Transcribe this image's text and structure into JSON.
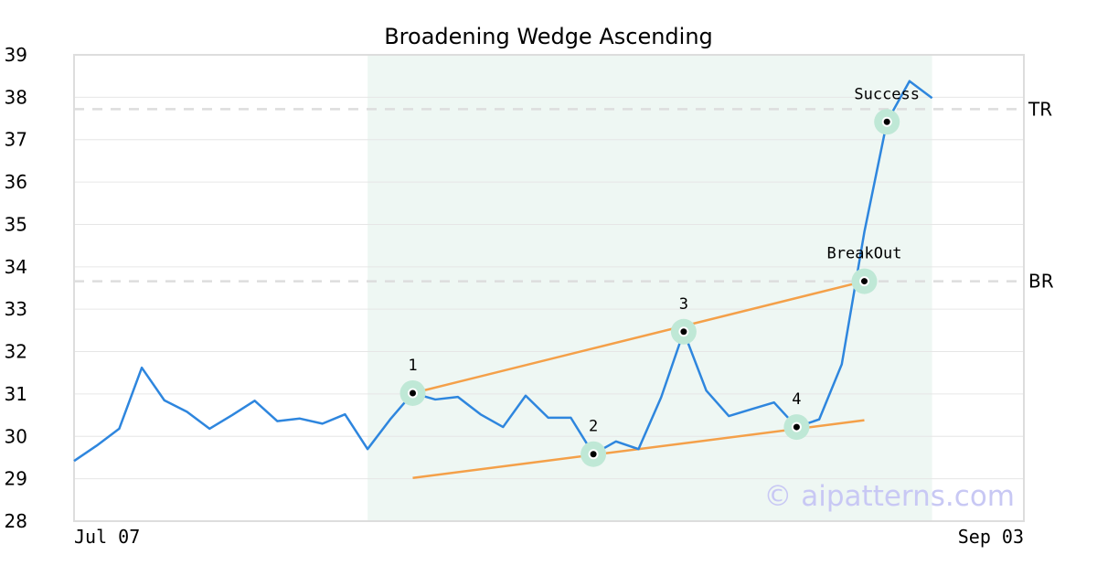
{
  "chart_data": {
    "type": "line",
    "title": "Broadening Wedge Ascending",
    "xlabel": "",
    "ylabel": "",
    "ylim": [
      28,
      39
    ],
    "yticks": [
      "28",
      "29",
      "30",
      "31",
      "32",
      "33",
      "34",
      "35",
      "36",
      "37",
      "38",
      "39"
    ],
    "x_tick_labels": [
      "Jul 07",
      "Sep 03"
    ],
    "grid": "horizontal",
    "series": [
      {
        "color": "#2e86de",
        "values": [
          29.42,
          29.78,
          30.18,
          31.62,
          30.85,
          30.58,
          30.18,
          30.5,
          30.84,
          30.36,
          30.42,
          30.3,
          30.52,
          29.7,
          30.4,
          31.02,
          30.87,
          30.93,
          30.52,
          30.22,
          30.96,
          30.44,
          30.44,
          29.58,
          29.88,
          29.7,
          30.92,
          32.47,
          31.08,
          30.48,
          30.64,
          30.8,
          30.22,
          30.4,
          31.7,
          34.82,
          37.42,
          38.38,
          37.98
        ]
      }
    ],
    "highlight_region": {
      "from_index": 13,
      "to_index": 38,
      "color": "#eef7f3"
    },
    "trend_lines": [
      {
        "color": "#f4a049",
        "from": {
          "index": 15,
          "value": 31.02
        },
        "to": {
          "index": 35,
          "value": 33.66
        }
      },
      {
        "color": "#f4a049",
        "from": {
          "index": 15,
          "value": 29.02
        },
        "to": {
          "index": 35,
          "value": 30.38
        }
      }
    ],
    "markers": [
      {
        "index": 15,
        "value": 31.02,
        "label": "1",
        "label_pos": "above"
      },
      {
        "index": 23,
        "value": 29.58,
        "label": "2",
        "label_pos": "above"
      },
      {
        "index": 27,
        "value": 32.47,
        "label": "3",
        "label_pos": "above"
      },
      {
        "index": 32,
        "value": 30.22,
        "label": "4",
        "label_pos": "above"
      },
      {
        "index": 35,
        "value": 33.66,
        "label": "BreakOut",
        "label_pos": "above"
      },
      {
        "index": 36,
        "value": 37.42,
        "label": "Success",
        "label_pos": "above"
      }
    ],
    "marker_halo_color": "#bfe8d6",
    "levels": [
      {
        "label": "TR",
        "value": 37.72,
        "color": "#dddddd"
      },
      {
        "label": "BR",
        "value": 33.66,
        "color": "#dddddd"
      }
    ],
    "watermark": "© aipatterns.com"
  }
}
